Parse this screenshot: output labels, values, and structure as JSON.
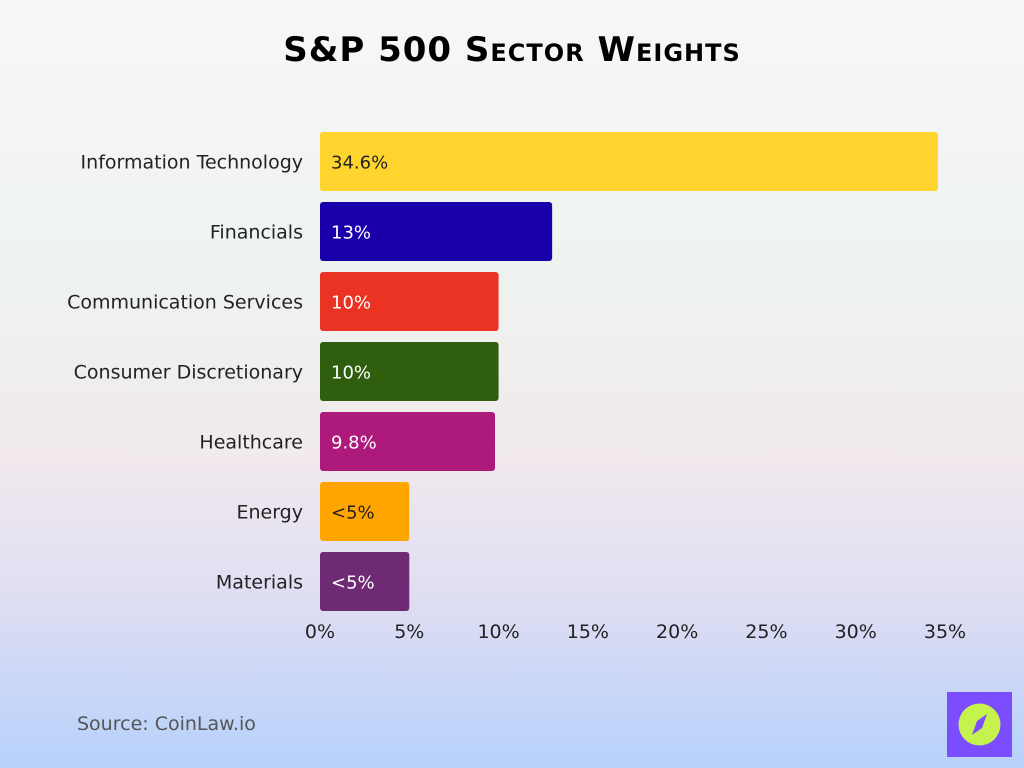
{
  "chart_data": {
    "type": "bar",
    "orientation": "horizontal",
    "title": "S&P 500 Sector Weights",
    "categories": [
      "Information Technology",
      "Financials",
      "Communication Services",
      "Consumer Discretionary",
      "Healthcare",
      "Energy",
      "Materials"
    ],
    "values": [
      34.6,
      13,
      10,
      10,
      9.8,
      5,
      5
    ],
    "data_labels": [
      "34.6%",
      "13%",
      "10%",
      "10%",
      "9.8%",
      "<5%",
      "<5%"
    ],
    "colors": [
      "#ffd42e",
      "#1a00ab",
      "#ea3323",
      "#2e5e0e",
      "#ad1a7c",
      "#ffa500",
      "#6e2a73"
    ],
    "label_colors": [
      "#222222",
      "#ffffff",
      "#ffffff",
      "#ffffff",
      "#ffffff",
      "#222222",
      "#ffffff"
    ],
    "xlim": [
      0,
      35
    ],
    "xticks": [
      0,
      5,
      10,
      15,
      20,
      25,
      30,
      35
    ],
    "xtick_labels": [
      "0%",
      "5%",
      "10%",
      "15%",
      "20%",
      "25%",
      "30%",
      "35%"
    ],
    "grid": false,
    "xlabel": "",
    "ylabel": ""
  },
  "source": "Source: CoinLaw.io",
  "logo": {
    "icon": "compass-icon",
    "bg": "#7c4dff",
    "circle": "#c6f24e"
  }
}
